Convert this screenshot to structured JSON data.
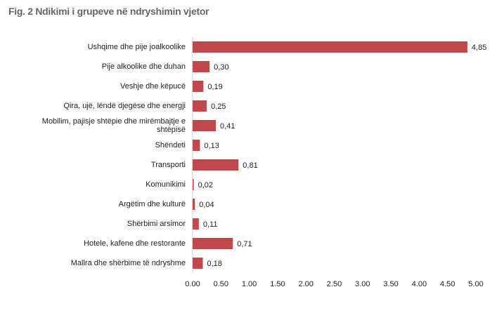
{
  "chart_data": {
    "type": "barh",
    "title": "Fig. 2 Ndikimi i grupeve në ndryshimin vjetor",
    "categories": [
      "Ushqime dhe pije joalkoolike",
      "Pije alkoolike dhe duhan",
      "Veshje dhe këpucë",
      "Qira, ujë, lëndë djegëse dhe energji",
      "Mobilim, pajisje shtëpie dhe mirëmbajtje e shtëpisë",
      "Shëndeti",
      "Transporti",
      "Komunikimi",
      "Argëtim dhe kulturë",
      "Shërbimi arsimor",
      "Hotele, kafene dhe restorante",
      "Mallra dhe shërbime të ndryshme"
    ],
    "values": [
      4.85,
      0.3,
      0.19,
      0.25,
      0.41,
      0.13,
      0.81,
      0.02,
      0.04,
      0.11,
      0.71,
      0.18
    ],
    "value_labels": [
      "4,85",
      "0,30",
      "0,19",
      "0,25",
      "0,41",
      "0,13",
      "0,81",
      "0,02",
      "0,04",
      "0,11",
      "0,71",
      "0,18"
    ],
    "color": "#c0474a",
    "xlim": [
      0,
      5
    ],
    "xticks": [
      {
        "value": 0,
        "label": "0.00"
      },
      {
        "value": 0.5,
        "label": "0.50"
      },
      {
        "value": 1,
        "label": "1.00"
      },
      {
        "value": 1.5,
        "label": "1.50"
      },
      {
        "value": 2,
        "label": "2.00"
      },
      {
        "value": 2.5,
        "label": "2.50"
      },
      {
        "value": 3,
        "label": "3.00"
      },
      {
        "value": 3.5,
        "label": "3.50"
      },
      {
        "value": 4,
        "label": "4.00"
      },
      {
        "value": 4.5,
        "label": "4.50"
      },
      {
        "value": 5,
        "label": "5.00"
      }
    ],
    "grid": false
  }
}
